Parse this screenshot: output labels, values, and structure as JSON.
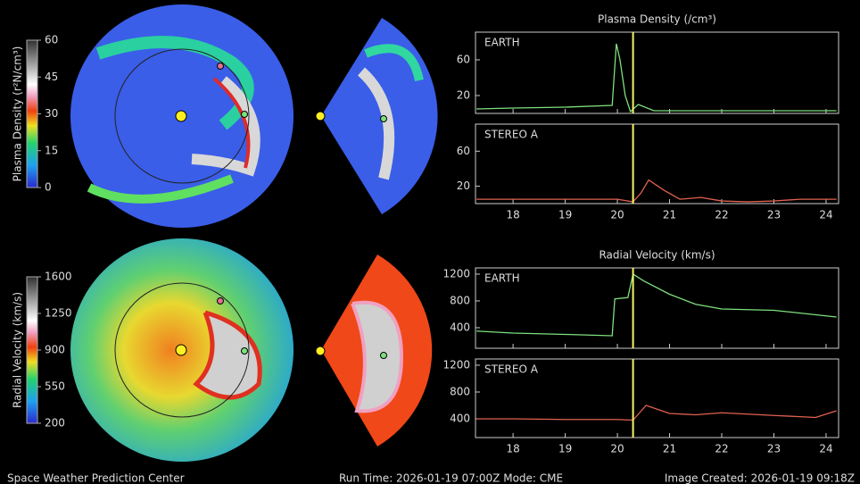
{
  "chart_data": [
    {
      "type": "line",
      "title": "Plasma Density (/cm³)",
      "label": "EARTH",
      "x": [
        17.3,
        18,
        19,
        19.9,
        19.98,
        20.05,
        20.15,
        20.25,
        20.4,
        20.7,
        21.5,
        22.5,
        23.5,
        24.2
      ],
      "series": [
        {
          "color": "#7ee07e",
          "values": [
            5,
            6,
            7,
            9,
            78,
            60,
            20,
            2,
            10,
            3,
            3,
            3,
            3,
            3
          ]
        }
      ],
      "xlim": [
        17.28,
        24.24
      ],
      "xticks": [
        18,
        19,
        20,
        21,
        22,
        23,
        24
      ],
      "xtick_labels": false,
      "ylim": [
        0,
        91
      ],
      "yticks": [
        20,
        60
      ],
      "marker_x": 20.3,
      "marker_color": "#f4f46a"
    },
    {
      "type": "line",
      "label": "STEREO A",
      "x": [
        17.3,
        18,
        19,
        20,
        20.3,
        20.45,
        20.6,
        20.9,
        21.2,
        21.6,
        22,
        22.5,
        23,
        23.5,
        24.2
      ],
      "series": [
        {
          "color": "#e0624f",
          "values": [
            5,
            5,
            5,
            5,
            2,
            12,
            27,
            15,
            5,
            7,
            3,
            2,
            3,
            5,
            5
          ]
        }
      ],
      "xlim": [
        17.28,
        24.24
      ],
      "xticks": [
        18,
        19,
        20,
        21,
        22,
        23,
        24
      ],
      "xtick_labels": true,
      "ylim": [
        0,
        91
      ],
      "yticks": [
        20,
        60
      ],
      "marker_x": 20.3,
      "marker_color": "#f4f46a"
    },
    {
      "type": "line",
      "title": "Radial Velocity (km/s)",
      "label": "EARTH",
      "x": [
        17.3,
        18,
        19,
        19.9,
        19.95,
        20.2,
        20.3,
        20.5,
        21,
        21.5,
        22,
        23,
        24.2
      ],
      "series": [
        {
          "color": "#7ee07e",
          "values": [
            350,
            320,
            300,
            280,
            830,
            850,
            1200,
            1100,
            900,
            750,
            680,
            660,
            560
          ]
        }
      ],
      "xlim": [
        17.28,
        24.24
      ],
      "xticks": [
        18,
        19,
        20,
        21,
        22,
        23,
        24
      ],
      "xtick_labels": false,
      "ylim": [
        93,
        1293
      ],
      "yticks": [
        400,
        800,
        1200
      ],
      "marker_x": 20.3,
      "marker_color": "#f4f46a"
    },
    {
      "type": "line",
      "label": "STEREO A",
      "x": [
        17.3,
        18,
        19,
        20,
        20.3,
        20.55,
        21,
        21.5,
        22,
        23,
        23.8,
        24.2
      ],
      "series": [
        {
          "color": "#e0624f",
          "values": [
            400,
            400,
            390,
            390,
            380,
            600,
            480,
            460,
            490,
            450,
            420,
            520
          ]
        }
      ],
      "xlim": [
        17.28,
        24.24
      ],
      "xticks": [
        18,
        19,
        20,
        21,
        22,
        23,
        24
      ],
      "xtick_labels": true,
      "ylim": [
        120,
        1293
      ],
      "yticks": [
        400,
        800,
        1200
      ],
      "marker_x": 20.3,
      "marker_color": "#f4f46a"
    }
  ],
  "colorbars": [
    {
      "title": "Plasma Density (r²N/cm³)",
      "range": [
        0,
        60
      ],
      "ticks": [
        0,
        15,
        30,
        45,
        60
      ]
    },
    {
      "title": "Radial Velocity (km/s)",
      "range": [
        200,
        1600
      ],
      "ticks": [
        200,
        550,
        900,
        1250,
        1600
      ]
    }
  ],
  "footer": {
    "left": "Space Weather Prediction Center",
    "center": "Run Time: 2026-01-19 07:00Z  Mode: CME",
    "right": "Image Created: 2026-01-19 09:18Z"
  }
}
